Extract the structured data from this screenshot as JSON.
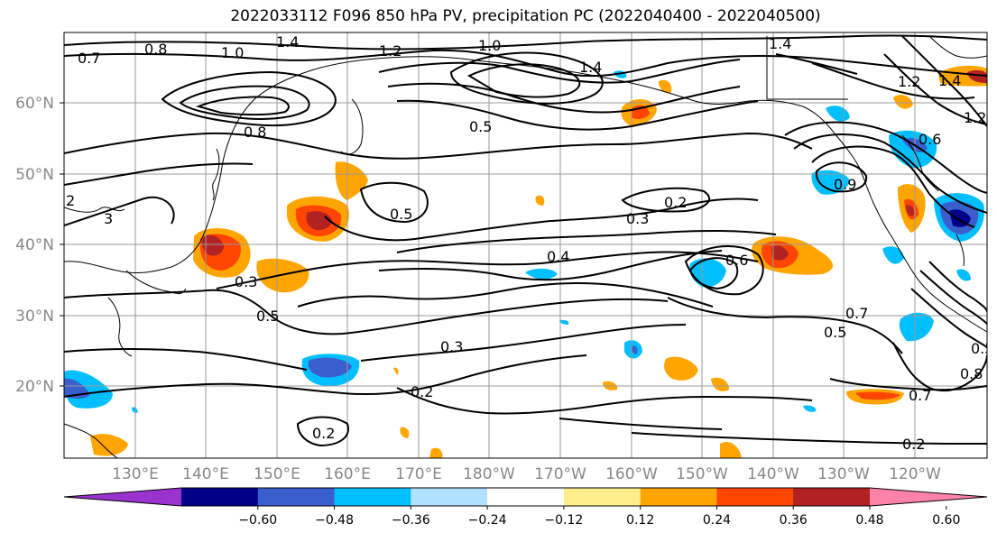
{
  "title": "2022033112 F096 850 hPa PV, precipitation PC (2022040400 - 2022040500)",
  "lat_labels": [
    "60°N",
    "50°N",
    "40°N",
    "30°N",
    "20°N"
  ],
  "lon_labels": [
    "130°E",
    "140°E",
    "150°E",
    "160°E",
    "170°E",
    "180°W",
    "170°W",
    "160°W",
    "150°W",
    "140°W",
    "130°W",
    "120°W"
  ],
  "colorbar": {
    "ticks": [
      "−0.60",
      "−0.48",
      "−0.36",
      "−0.24",
      "−0.12",
      "0.12",
      "0.24",
      "0.36",
      "0.48",
      "0.60"
    ],
    "colors": [
      "#9a32cd",
      "#00008b",
      "#3a5fcd",
      "#00bfff",
      "#b0e2ff",
      "#ffffff",
      "#ffec8b",
      "#ffa500",
      "#ff4500",
      "#b22222",
      "#ff82ab"
    ]
  },
  "contour_labels": [
    "0.7",
    "0.8",
    "1.4",
    "1.0",
    "1.2",
    "1.0",
    "1.4",
    "1.4",
    "1.2",
    "1.4",
    "1.2",
    "0.8",
    "0.5",
    "0.6",
    "0.9",
    "2",
    "3",
    "0.5",
    "0.2",
    "0.3",
    "0.3",
    "0.4",
    "0.6",
    "0.5",
    "0.3",
    "0.2",
    "0.2",
    "0.5",
    "0.7",
    "0.7",
    "0.8",
    "0.2",
    "0.5"
  ]
}
